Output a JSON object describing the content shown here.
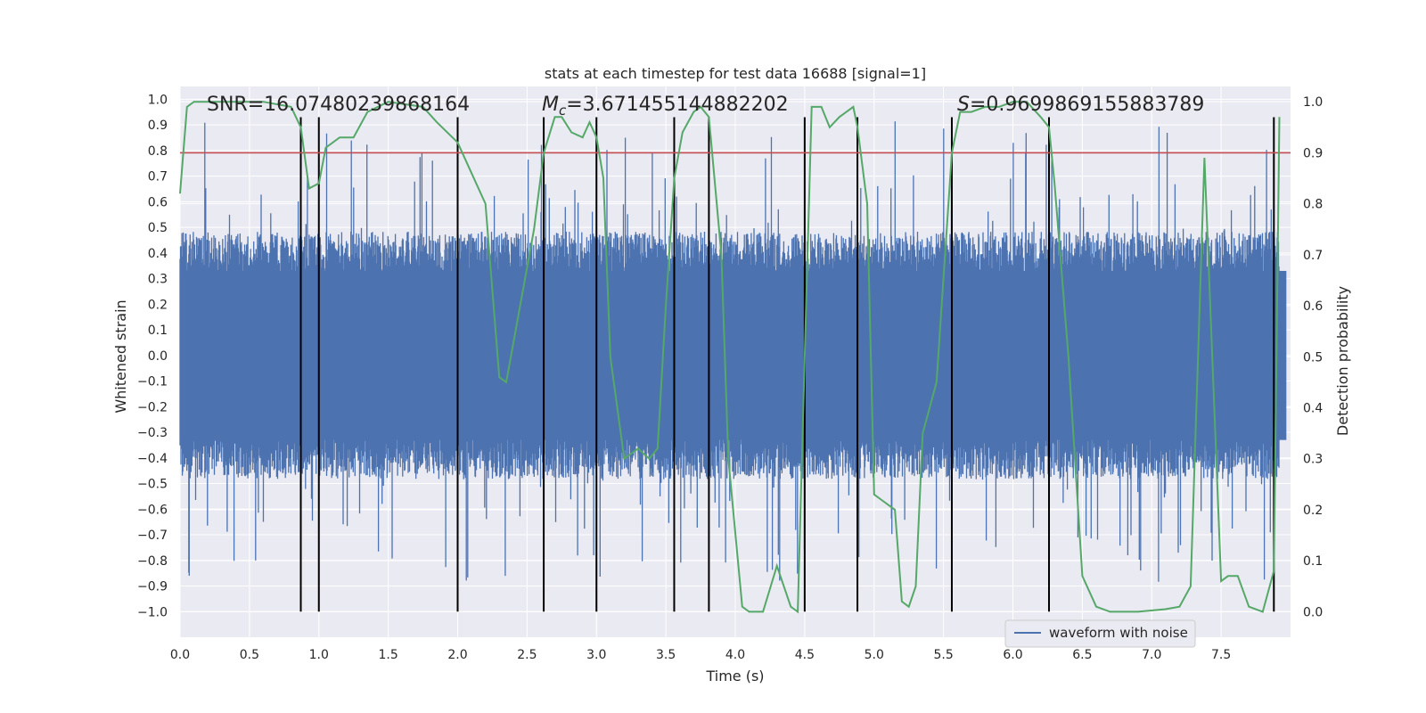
{
  "chart_data": {
    "type": "line",
    "title": "stats at each timestep for test data 16688 [signal=1]",
    "xlabel": "Time (s)",
    "ylabel_left": "Whitened strain",
    "ylabel_right": "Detection probability",
    "xlim": [
      0.0,
      8.0
    ],
    "ylim_left": [
      -1.1,
      1.05
    ],
    "ylim_right": [
      -0.05,
      1.03
    ],
    "x_ticks": [
      "0.0",
      "0.5",
      "1.0",
      "1.5",
      "2.0",
      "2.5",
      "3.0",
      "3.5",
      "4.0",
      "4.5",
      "5.0",
      "5.5",
      "6.0",
      "6.5",
      "7.0",
      "7.5"
    ],
    "y_ticks_left": [
      "1.0",
      "0.9",
      "0.8",
      "0.7",
      "0.6",
      "0.5",
      "0.4",
      "0.3",
      "0.2",
      "0.1",
      "0.0",
      "−0.1",
      "−0.2",
      "−0.3",
      "−0.4",
      "−0.5",
      "−0.6",
      "−0.7",
      "−0.8",
      "−0.9",
      "−1.0"
    ],
    "y_ticks_right": [
      "1.0",
      "0.9",
      "0.8",
      "0.7",
      "0.6",
      "0.5",
      "0.4",
      "0.3",
      "0.2",
      "0.1",
      "0.0"
    ],
    "annotations": {
      "snr": "SNR=16.07480239868164",
      "mc_symbol": "M",
      "mc_subscript": "c",
      "mc_value": "=3.671455144882202",
      "s_symbol": "S",
      "s_value": "=0.9699869155883789"
    },
    "threshold": 0.9,
    "vertical_lines_x": [
      0.87,
      1.0,
      2.0,
      2.62,
      3.0,
      3.56,
      3.81,
      4.5,
      4.88,
      5.56,
      6.26,
      7.88
    ],
    "waveform_envelope": {
      "typical_band": [
        -0.42,
        0.42
      ],
      "approx_max": 0.93,
      "approx_min": -0.96
    },
    "series": [
      {
        "name": "waveform with noise",
        "axis": "left",
        "color": "#4c72b0"
      },
      {
        "name": "detection probability",
        "axis": "right",
        "color": "#55a868",
        "points": [
          [
            0.0,
            0.82
          ],
          [
            0.05,
            0.99
          ],
          [
            0.1,
            1.0
          ],
          [
            0.2,
            1.0
          ],
          [
            0.4,
            1.0
          ],
          [
            0.6,
            1.0
          ],
          [
            0.8,
            0.99
          ],
          [
            0.87,
            0.95
          ],
          [
            0.93,
            0.83
          ],
          [
            1.0,
            0.84
          ],
          [
            1.05,
            0.91
          ],
          [
            1.15,
            0.93
          ],
          [
            1.25,
            0.93
          ],
          [
            1.35,
            0.98
          ],
          [
            1.5,
            1.0
          ],
          [
            1.75,
            0.99
          ],
          [
            1.85,
            0.96
          ],
          [
            2.0,
            0.92
          ],
          [
            2.1,
            0.86
          ],
          [
            2.2,
            0.8
          ],
          [
            2.3,
            0.46
          ],
          [
            2.35,
            0.45
          ],
          [
            2.45,
            0.6
          ],
          [
            2.55,
            0.75
          ],
          [
            2.62,
            0.9
          ],
          [
            2.7,
            0.97
          ],
          [
            2.75,
            0.97
          ],
          [
            2.82,
            0.94
          ],
          [
            2.9,
            0.93
          ],
          [
            2.95,
            0.96
          ],
          [
            3.0,
            0.93
          ],
          [
            3.05,
            0.85
          ],
          [
            3.1,
            0.5
          ],
          [
            3.15,
            0.4
          ],
          [
            3.2,
            0.3
          ],
          [
            3.3,
            0.32
          ],
          [
            3.38,
            0.3
          ],
          [
            3.44,
            0.32
          ],
          [
            3.5,
            0.6
          ],
          [
            3.56,
            0.85
          ],
          [
            3.62,
            0.94
          ],
          [
            3.7,
            0.98
          ],
          [
            3.75,
            0.99
          ],
          [
            3.81,
            0.97
          ],
          [
            3.9,
            0.7
          ],
          [
            3.95,
            0.3
          ],
          [
            4.05,
            0.01
          ],
          [
            4.1,
            0.0
          ],
          [
            4.2,
            0.0
          ],
          [
            4.3,
            0.09
          ],
          [
            4.4,
            0.01
          ],
          [
            4.45,
            0.0
          ],
          [
            4.5,
            0.5
          ],
          [
            4.55,
            0.99
          ],
          [
            4.62,
            0.99
          ],
          [
            4.68,
            0.95
          ],
          [
            4.75,
            0.97
          ],
          [
            4.85,
            0.99
          ],
          [
            4.88,
            0.95
          ],
          [
            4.95,
            0.8
          ],
          [
            5.0,
            0.23
          ],
          [
            5.05,
            0.22
          ],
          [
            5.15,
            0.2
          ],
          [
            5.2,
            0.02
          ],
          [
            5.25,
            0.01
          ],
          [
            5.3,
            0.05
          ],
          [
            5.35,
            0.35
          ],
          [
            5.45,
            0.45
          ],
          [
            5.56,
            0.9
          ],
          [
            5.62,
            0.98
          ],
          [
            5.7,
            0.98
          ],
          [
            5.8,
            0.99
          ],
          [
            5.9,
            0.99
          ],
          [
            6.0,
            1.0
          ],
          [
            6.1,
            1.0
          ],
          [
            6.2,
            0.97
          ],
          [
            6.26,
            0.95
          ],
          [
            6.3,
            0.84
          ],
          [
            6.4,
            0.5
          ],
          [
            6.5,
            0.07
          ],
          [
            6.6,
            0.01
          ],
          [
            6.7,
            0.0
          ],
          [
            6.9,
            0.0
          ],
          [
            7.1,
            0.005
          ],
          [
            7.2,
            0.01
          ],
          [
            7.28,
            0.05
          ],
          [
            7.38,
            0.89
          ],
          [
            7.5,
            0.06
          ],
          [
            7.55,
            0.07
          ],
          [
            7.62,
            0.07
          ],
          [
            7.7,
            0.01
          ],
          [
            7.8,
            0.0
          ],
          [
            7.88,
            0.08
          ],
          [
            7.92,
            0.97
          ]
        ]
      },
      {
        "name": "threshold",
        "axis": "right",
        "color": "#c44e52"
      },
      {
        "name": "window boundaries",
        "axis": "left",
        "color": "#000000"
      }
    ],
    "legend": {
      "placement": "lower-right",
      "entries": [
        {
          "label": "waveform with noise",
          "color": "#4c72b0"
        }
      ]
    },
    "colors": {
      "plot_background": "#eaeaf2",
      "grid": "#ffffff",
      "page_background": "#ffffff"
    }
  }
}
